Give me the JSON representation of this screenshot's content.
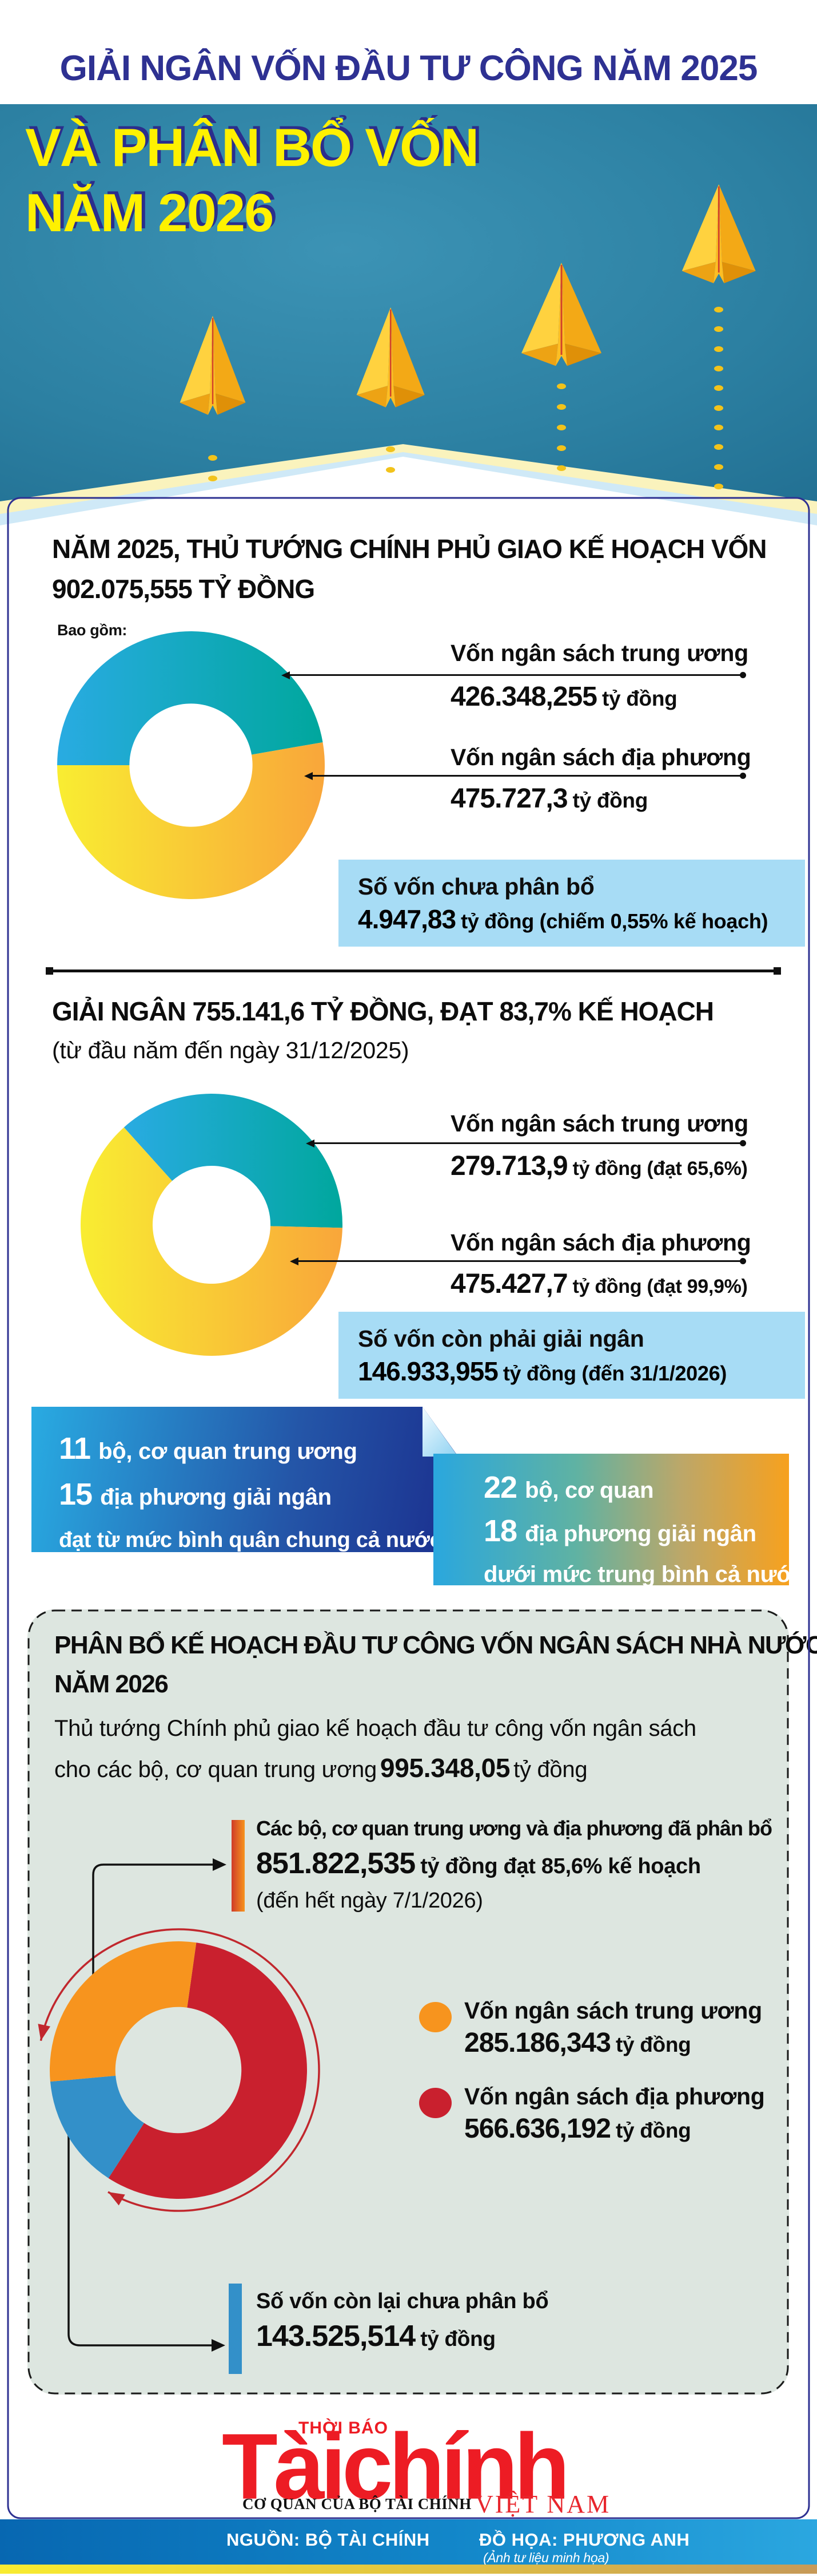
{
  "header": {
    "title": "GIẢI NGÂN VỐN ĐẦU TƯ CÔNG NĂM 2025"
  },
  "hero": {
    "title_line1": "VÀ PHÂN BỔ VỐN",
    "title_line2": "NĂM 2026"
  },
  "section1": {
    "title_line1": "NĂM 2025, THỦ TƯỚNG CHÍNH PHỦ GIAO KẾ HOẠCH VỐN",
    "title_line2": "902.075,555 TỶ ĐỒNG",
    "note": "Bao gồm:",
    "items": [
      {
        "label": "Vốn ngân sách trung ương",
        "number": "426.348,255",
        "unit": "tỷ đồng"
      },
      {
        "label": "Vốn ngân sách địa phương",
        "number": "475.727,3",
        "unit": "tỷ đồng"
      }
    ],
    "unallocated": {
      "line1": "Số vốn chưa phân bổ",
      "number": "4.947,83",
      "rest": "tỷ đồng (chiếm 0,55% kế hoạch)"
    }
  },
  "section2": {
    "title": "GIẢI NGÂN 755.141,6 TỶ ĐỒNG, ĐẠT 83,7% KẾ HOẠCH",
    "subtitle": "(từ đầu năm đến ngày 31/12/2025)",
    "items": [
      {
        "label": "Vốn ngân sách trung ương",
        "number": "279.713,9",
        "unit": "tỷ đồng (đạt 65,6%)"
      },
      {
        "label": "Vốn ngân sách địa phương",
        "number": "475.427,7",
        "unit": "tỷ đồng (đạt 99,9%)"
      }
    ],
    "remaining": {
      "line1": "Số vốn còn phải giải ngân",
      "number": "146.933,955",
      "rest": "tỷ đồng (đến 31/1/2026)"
    }
  },
  "highlight_boxes": {
    "above_average": {
      "number1": "11",
      "text1": "bộ, cơ quan trung ương",
      "number2": "15",
      "text2": "địa phương giải ngân",
      "text3": "đạt từ mức bình quân chung cả nước"
    },
    "below_average": {
      "number1": "22",
      "text1": "bộ, cơ quan",
      "number2": "18",
      "text2": "địa phương giải ngân",
      "text3": "dưới mức trung bình cả nước"
    }
  },
  "section3": {
    "title_line1": "PHÂN BỔ KẾ HOẠCH ĐẦU TƯ CÔNG VỐN NGÂN SÁCH NHÀ NƯỚC",
    "title_line2": "NĂM 2026",
    "para_line1": "Thủ tướng Chính phủ giao kế hoạch đầu tư công vốn ngân sách",
    "para_line2_pre": "cho các bộ, cơ quan trung ương",
    "para_line2_number": "995.348,05",
    "para_line2_post": "tỷ đồng",
    "allocated": {
      "line1": "Các bộ, cơ quan trung ương và địa phương đã phân bổ",
      "number": "851.822,535",
      "rest": "tỷ đồng đạt 85,6% kế hoạch",
      "line3": "(đến hết ngày 7/1/2026)"
    },
    "legend": [
      {
        "label": "Vốn ngân sách trung ương",
        "number": "285.186,343",
        "unit": "tỷ đồng",
        "color": "#f7941e"
      },
      {
        "label": "Vốn ngân sách địa phương",
        "number": "566.636,192",
        "unit": "tỷ đồng",
        "color": "#c9202e"
      }
    ],
    "remaining": {
      "line1": "Số vốn còn lại chưa phân bổ",
      "number": "143.525,514",
      "unit": "tỷ đồng"
    }
  },
  "footer": {
    "tabloid": "THỜI BÁO",
    "masthead": "Tàichính",
    "country": "VIỆT NAM",
    "org": "CƠ QUAN CỦA BỘ TÀI CHÍNH",
    "source": "NGUỒN: BỘ TÀI CHÍNH",
    "graphics": "ĐỒ HỌA: PHƯƠNG ANH",
    "photo_note": "(Ảnh tư liệu minh họa)"
  },
  "colors": {
    "navy": "#2e3192",
    "hero_teal": "#2c80a2",
    "hero_yellow": "#fff100",
    "light_blue_box": "#a7dcf5",
    "sage_panel": "#dde6e0",
    "orange": "#f7941e",
    "red": "#c9202e",
    "blue": "#3390c9",
    "masthead_red": "#ed1c24",
    "source_bar_blue": "#0767b1",
    "gold": "#f9ec31"
  },
  "chart_data": [
    {
      "id": "plan2025",
      "type": "donut",
      "title": "Kế hoạch vốn năm 2025: 902.075,555 tỷ đồng",
      "start_deg": 270,
      "inner_ratio": 0.46,
      "segments": [
        {
          "label": "Vốn ngân sách trung ương",
          "value": 426348.255,
          "gradient": [
            "#29abe2",
            "#00a79d"
          ]
        },
        {
          "label": "Vốn ngân sách địa phương",
          "value": 475727.3,
          "gradient": [
            "#f9ed32",
            "#f9a63a"
          ]
        }
      ]
    },
    {
      "id": "disbursed2025",
      "type": "donut",
      "title": "Giải ngân 755.141,6 tỷ đồng, đạt 83,7% kế hoạch",
      "start_deg": 318,
      "inner_ratio": 0.45,
      "segments": [
        {
          "label": "Vốn ngân sách trung ương",
          "value": 279713.9,
          "pct": "65,6%",
          "gradient": [
            "#29abe2",
            "#00a79d"
          ]
        },
        {
          "label": "Vốn ngân sách địa phương",
          "value": 475427.7,
          "pct": "99,9%",
          "gradient": [
            "#f9ed32",
            "#f9a63a"
          ]
        }
      ]
    },
    {
      "id": "plan2026",
      "type": "donut",
      "title": "Phân bổ kế hoạch đầu tư công vốn NSNN năm 2026: 995.348,05 tỷ đồng",
      "start_deg": 8,
      "inner_ratio": 0.49,
      "segments": [
        {
          "label": "Vốn ngân sách địa phương",
          "value": 566636.192,
          "color": "#c9202e"
        },
        {
          "label": "Số vốn còn lại chưa phân bổ",
          "value": 143525.514,
          "color": "#3390c9"
        },
        {
          "label": "Vốn ngân sách trung ương",
          "value": 285186.343,
          "color": "#f7941e"
        }
      ]
    }
  ]
}
